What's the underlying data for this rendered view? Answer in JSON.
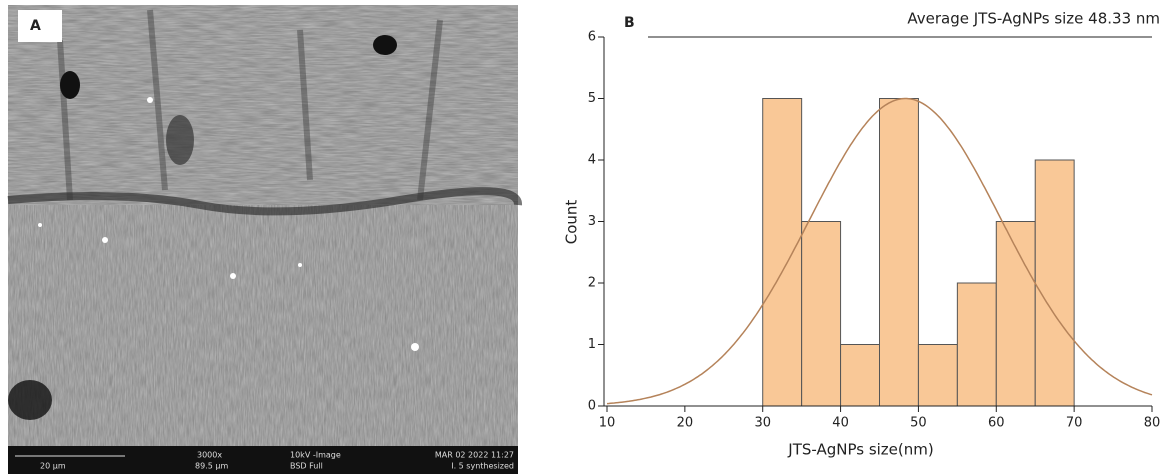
{
  "panel_a": {
    "label": "A",
    "scale_bar": "20 µm",
    "magnification": "3000x",
    "field_width": "89.5 µm",
    "voltage": "10kV -Image",
    "detector": "BSD Full",
    "date": "MAR 02 2022 11:27",
    "sample": "I. 5 synthesized"
  },
  "chart_data": {
    "type": "histogram",
    "label": "B",
    "title": "Average JTS-AgNPs size 48.33 nm",
    "x_label": "JTS-AgNPs size(nm)",
    "y_label": "Count",
    "bins": [
      30,
      35,
      40,
      45,
      50,
      55,
      60,
      65,
      70
    ],
    "values": [
      5,
      3,
      1,
      5,
      1,
      2,
      3,
      4
    ],
    "color": "#f9c897",
    "fit": {
      "mean": 48.33,
      "sd": 12.3,
      "amplitude": 5,
      "color": "#b5835a"
    },
    "xlim": [
      10,
      80
    ],
    "xticks": [
      10,
      20,
      30,
      40,
      50,
      60,
      70,
      80
    ],
    "ylim": [
      0,
      6
    ],
    "yticks": [
      0,
      1,
      2,
      3,
      4,
      5,
      6
    ]
  }
}
